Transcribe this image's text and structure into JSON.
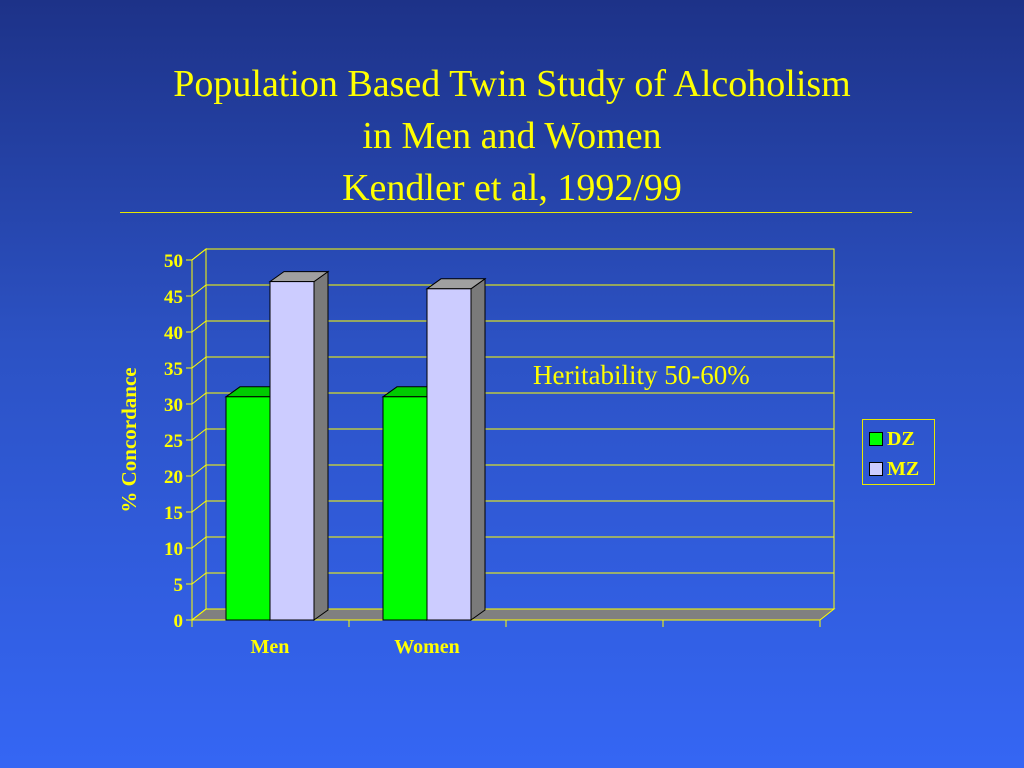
{
  "title": {
    "line1": "Population Based Twin Study of Alcoholism",
    "line2": "in Men and Women",
    "line3": "Kendler et al, 1992/99"
  },
  "annotation": "Heritability 50-60%",
  "colors": {
    "text": "#ffff00",
    "dz": "#00ff00",
    "mz": "#ccccff",
    "background_top": "#1d3288",
    "background_bottom": "#3566f4"
  },
  "chart_data": {
    "type": "bar",
    "style": "3d-clustered",
    "categories": [
      "Men",
      "Women"
    ],
    "series": [
      {
        "name": "DZ",
        "values": [
          31,
          31
        ]
      },
      {
        "name": "MZ",
        "values": [
          47,
          46
        ]
      }
    ],
    "ylabel": "% Concordance",
    "xlabel": "",
    "ylim": [
      0,
      50
    ],
    "yticks": [
      0,
      5,
      10,
      15,
      20,
      25,
      30,
      35,
      40,
      45,
      50
    ],
    "grid": true,
    "legend": "right"
  }
}
